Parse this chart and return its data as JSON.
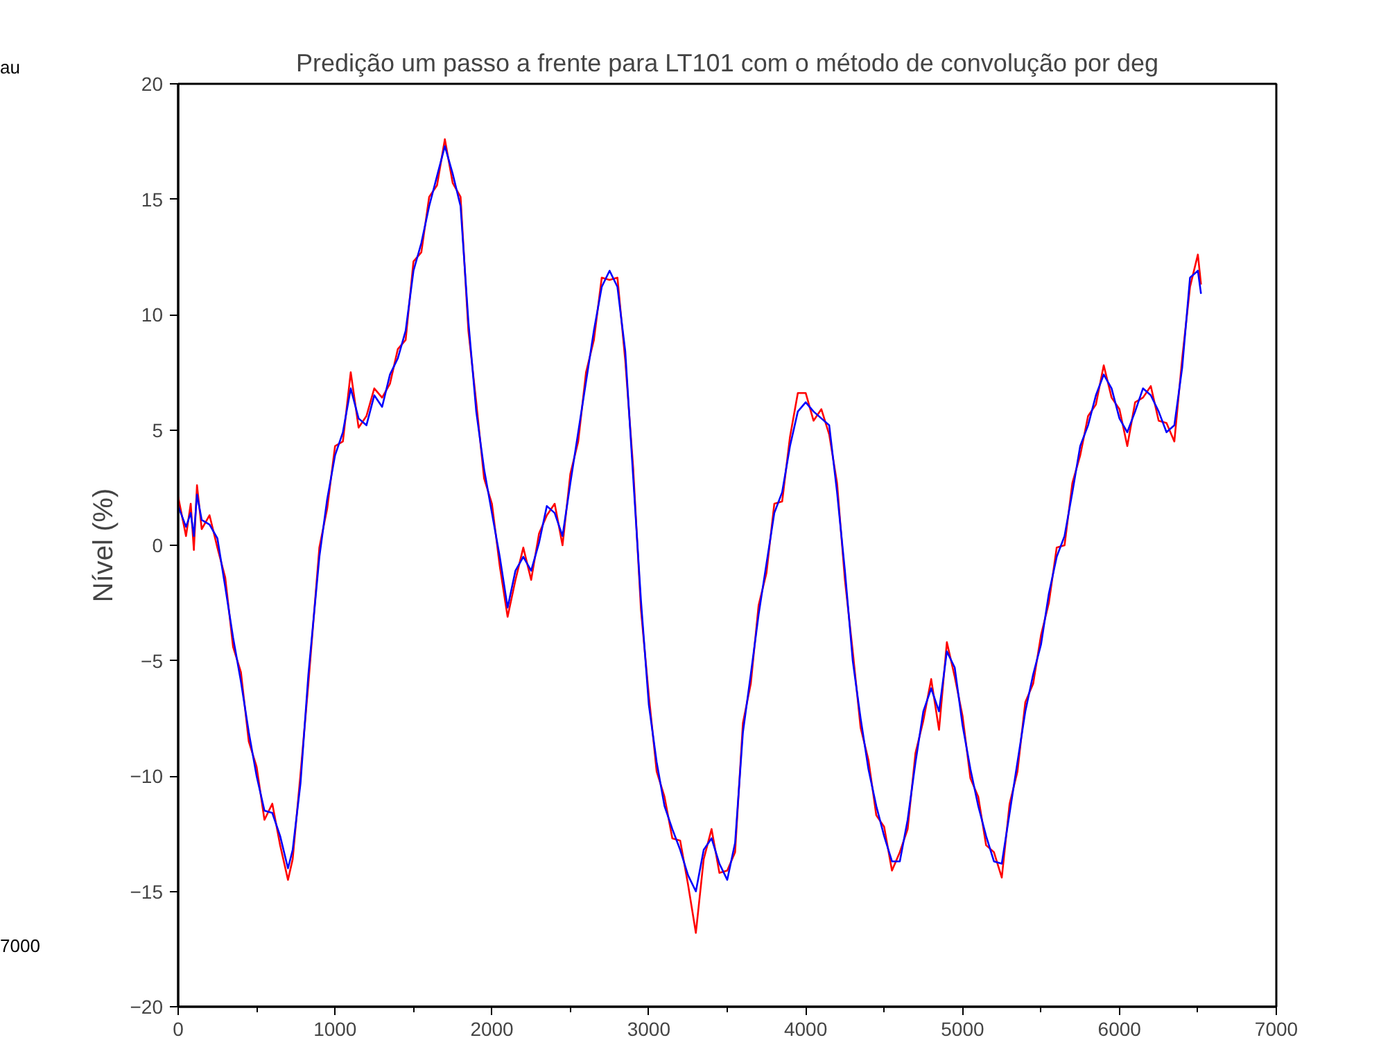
{
  "chart_data": {
    "type": "line",
    "title": "Predição um passo a frente para LT101 com o método de convolução por deg",
    "ylabel": "Nível (%)",
    "annotations": [
      "au",
      "7000"
    ],
    "x": [
      0,
      50,
      80,
      100,
      120,
      150,
      200,
      250,
      300,
      350,
      400,
      450,
      500,
      550,
      600,
      650,
      700,
      730,
      780,
      830,
      900,
      950,
      1000,
      1050,
      1100,
      1150,
      1200,
      1250,
      1300,
      1350,
      1400,
      1450,
      1500,
      1550,
      1600,
      1650,
      1700,
      1750,
      1800,
      1850,
      1900,
      1950,
      2000,
      2050,
      2100,
      2150,
      2200,
      2250,
      2300,
      2350,
      2400,
      2450,
      2500,
      2550,
      2600,
      2650,
      2700,
      2750,
      2800,
      2850,
      2900,
      2950,
      3000,
      3050,
      3100,
      3150,
      3200,
      3250,
      3300,
      3350,
      3400,
      3450,
      3500,
      3550,
      3600,
      3650,
      3700,
      3750,
      3800,
      3850,
      3900,
      3950,
      4000,
      4050,
      4100,
      4150,
      4200,
      4250,
      4300,
      4350,
      4400,
      4450,
      4500,
      4550,
      4600,
      4650,
      4700,
      4750,
      4800,
      4850,
      4900,
      4950,
      5000,
      5050,
      5100,
      5150,
      5200,
      5250,
      5300,
      5350,
      5400,
      5450,
      5500,
      5550,
      5600,
      5650,
      5700,
      5750,
      5800,
      5850,
      5900,
      5950,
      6000,
      6050,
      6100,
      6150,
      6200,
      6250,
      6300,
      6350,
      6400,
      6450,
      6500,
      6520
    ],
    "series": [
      {
        "color": "#ff0000",
        "values": [
          2.1,
          0.4,
          1.8,
          -0.2,
          2.6,
          0.7,
          1.3,
          -0.1,
          -1.4,
          -4.4,
          -5.5,
          -8.5,
          -9.6,
          -11.9,
          -11.2,
          -13,
          -14.5,
          -13.6,
          -9.9,
          -6,
          -0.1,
          1.6,
          4.3,
          4.5,
          7.5,
          5.1,
          5.6,
          6.8,
          6.4,
          7,
          8.5,
          8.9,
          12.3,
          12.7,
          15.1,
          15.6,
          17.6,
          15.7,
          15.1,
          9.3,
          6.2,
          2.9,
          1.8,
          -0.9,
          -3.1,
          -1.5,
          -0.1,
          -1.5,
          0.5,
          1.3,
          1.8,
          0,
          3.1,
          4.5,
          7.5,
          8.9,
          11.6,
          11.5,
          11.6,
          8,
          3.4,
          -2.8,
          -6.5,
          -9.8,
          -10.9,
          -12.7,
          -12.8,
          -14.7,
          -16.8,
          -13.6,
          -12.3,
          -14.2,
          -14.1,
          -13.3,
          -7.7,
          -6,
          -2.6,
          -1.2,
          1.8,
          1.9,
          4.7,
          6.6,
          6.6,
          5.4,
          5.9,
          4.8,
          2.7,
          -1.5,
          -4.6,
          -7.9,
          -9.3,
          -11.7,
          -12.2,
          -14.1,
          -13.3,
          -12.3,
          -9,
          -7.6,
          -5.8,
          -8,
          -4.2,
          -5.7,
          -7.4,
          -10.1,
          -10.9,
          -13,
          -13.3,
          -14.4,
          -11.2,
          -9.8,
          -6.8,
          -6,
          -3.9,
          -2.5,
          -0.1,
          0,
          2.7,
          3.9,
          5.6,
          6.1,
          7.8,
          6.4,
          5.9,
          4.3,
          6.2,
          6.4,
          6.9,
          5.4,
          5.3,
          4.5,
          8.1,
          11.2,
          12.6,
          11.3
        ]
      },
      {
        "color": "#0000ff",
        "values": [
          1.7,
          0.8,
          1.4,
          0.4,
          2.2,
          1.1,
          0.9,
          0.3,
          -1.8,
          -4,
          -5.9,
          -8.1,
          -10,
          -11.5,
          -11.6,
          -12.6,
          -14,
          -13.2,
          -10.3,
          -5.6,
          -0.5,
          2,
          3.9,
          4.9,
          6.8,
          5.5,
          5.2,
          6.5,
          6,
          7.4,
          8.1,
          9.3,
          11.9,
          13.1,
          14.7,
          16,
          17.3,
          16.1,
          14.7,
          9.7,
          5.8,
          3.3,
          1.4,
          -0.5,
          -2.7,
          -1.1,
          -0.5,
          -1.1,
          0.1,
          1.7,
          1.4,
          0.4,
          2.7,
          4.9,
          7.1,
          9.3,
          11.2,
          11.9,
          11.2,
          8.4,
          3,
          -2.4,
          -6.9,
          -9.4,
          -11.3,
          -12.3,
          -13.2,
          -14.3,
          -15,
          -13.2,
          -12.7,
          -13.8,
          -14.5,
          -12.9,
          -8.1,
          -5.6,
          -3,
          -0.8,
          1.4,
          2.3,
          4.3,
          5.8,
          6.2,
          5.8,
          5.5,
          5.2,
          2.3,
          -1.1,
          -5,
          -7.5,
          -9.7,
          -11.3,
          -12.6,
          -13.7,
          -13.7,
          -11.9,
          -9.4,
          -7.2,
          -6.2,
          -7.2,
          -4.6,
          -5.3,
          -7.8,
          -9.7,
          -11.3,
          -12.6,
          -13.7,
          -13.8,
          -11.6,
          -9.4,
          -7.2,
          -5.6,
          -4.3,
          -2.1,
          -0.5,
          0.4,
          2.3,
          4.3,
          5.2,
          6.5,
          7.4,
          6.8,
          5.5,
          4.9,
          5.8,
          6.8,
          6.5,
          5.8,
          4.9,
          5.2,
          7.7,
          11.6,
          11.9,
          10.9
        ]
      }
    ],
    "xlim": [
      0,
      7000
    ],
    "ylim": [
      -20,
      20
    ],
    "xticks": [
      0,
      1000,
      2000,
      3000,
      4000,
      5000,
      6000,
      7000
    ],
    "yticks": [
      -20,
      -15,
      -10,
      -5,
      0,
      5,
      10,
      15,
      20
    ],
    "grid": false,
    "marker": "none",
    "line_style": "solid"
  }
}
